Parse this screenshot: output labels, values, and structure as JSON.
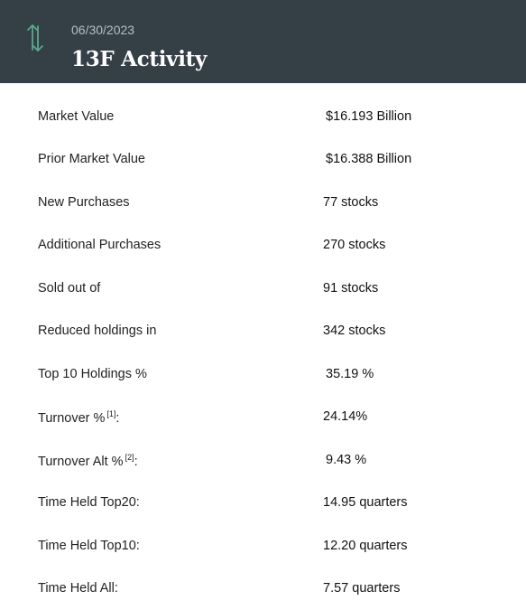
{
  "header": {
    "date": "06/30/2023",
    "title": "13F Activity",
    "icon": "up-down-arrows-icon",
    "background": "#343f46",
    "icon_color": "#5aa88a"
  },
  "rows": [
    {
      "label": "Market Value",
      "value": "$16.193 Billion"
    },
    {
      "label": "Prior Market Value",
      "value": "$16.388 Billion"
    },
    {
      "label": "New Purchases",
      "value": "77 stocks"
    },
    {
      "label": "Additional Purchases",
      "value": "270 stocks"
    },
    {
      "label": "Sold out of",
      "value": "91 stocks"
    },
    {
      "label": "Reduced holdings in",
      "value": "342 stocks"
    },
    {
      "label": "Top 10 Holdings %",
      "value": "35.19 %"
    },
    {
      "label": "Turnover %",
      "footnote": "[1]",
      "suffix": ":",
      "value": "24.14%"
    },
    {
      "label": "Turnover Alt %",
      "footnote": "[2]",
      "suffix": ":",
      "value": "9.43 %"
    },
    {
      "label": "Time Held Top20:",
      "value": "14.95 quarters"
    },
    {
      "label": "Time Held Top10:",
      "value": "12.20 quarters"
    },
    {
      "label": "Time Held All:",
      "value": "7.57 quarters"
    }
  ]
}
